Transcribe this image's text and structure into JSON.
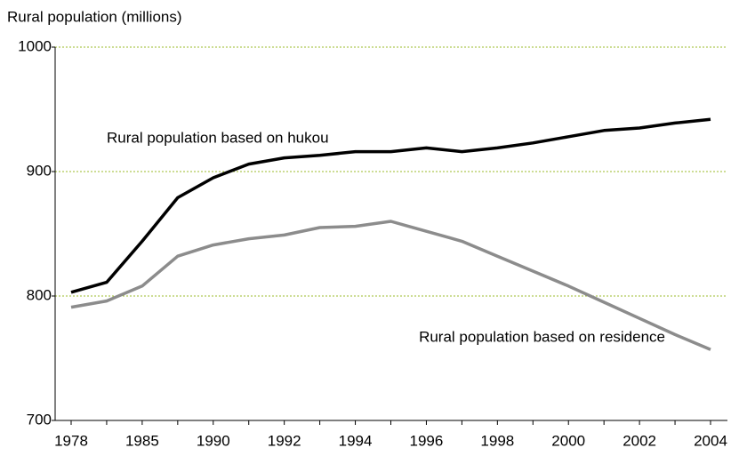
{
  "chart_data": {
    "type": "line",
    "y_axis_label": "Rural population (millions)",
    "categories": [
      "1978",
      null,
      "1985",
      null,
      "1990",
      null,
      "1992",
      null,
      "1994",
      null,
      "1996",
      null,
      "1998",
      null,
      "2000",
      null,
      "2002",
      null,
      "2004"
    ],
    "series": [
      {
        "name": "Rural population based on hukou",
        "color": "#000000",
        "values": [
          803,
          811,
          844,
          879,
          895,
          906,
          911,
          913,
          916,
          916,
          919,
          916,
          919,
          923,
          928,
          933,
          935,
          939,
          942
        ]
      },
      {
        "name": "Rural population based on residence",
        "color": "#8c8c8c",
        "values": [
          791,
          796,
          808,
          832,
          841,
          846,
          849,
          855,
          856,
          860,
          852,
          844,
          832,
          820,
          808,
          795,
          782,
          769,
          757
        ]
      }
    ],
    "ylim": [
      700,
      1000
    ],
    "yticks": [
      700,
      800,
      900,
      1000
    ],
    "grid": true
  }
}
